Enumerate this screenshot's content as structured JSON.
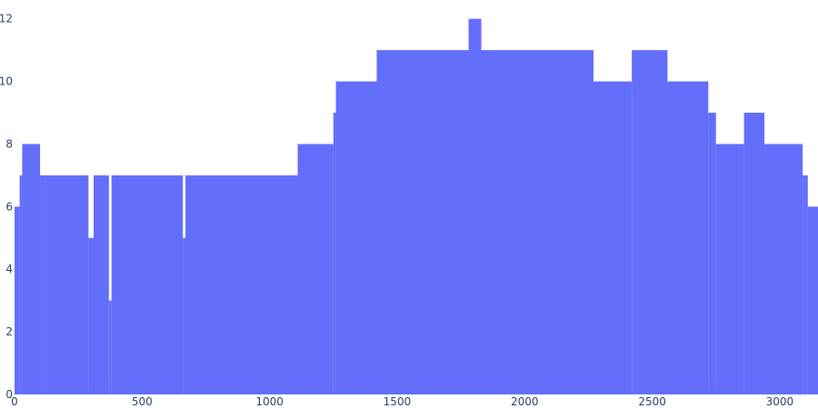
{
  "chart_data": {
    "type": "bar",
    "title": "",
    "xlabel": "",
    "ylabel": "",
    "xlim": [
      0,
      3150
    ],
    "ylim": [
      0,
      12.6
    ],
    "grid": false,
    "legend": "none",
    "bar_color": "#636efa",
    "x_ticks": [
      {
        "value": 0,
        "label": "0"
      },
      {
        "value": 500,
        "label": "500"
      },
      {
        "value": 1000,
        "label": "1000"
      },
      {
        "value": 1500,
        "label": "1500"
      },
      {
        "value": 2000,
        "label": "2000"
      },
      {
        "value": 2500,
        "label": "2500"
      },
      {
        "value": 3000,
        "label": "3000"
      }
    ],
    "y_ticks": [
      {
        "value": 0,
        "label": "0"
      },
      {
        "value": 2,
        "label": "2"
      },
      {
        "value": 4,
        "label": "4"
      },
      {
        "value": 6,
        "label": "6"
      },
      {
        "value": 8,
        "label": "8"
      },
      {
        "value": 10,
        "label": "10"
      },
      {
        "value": 12,
        "label": "12"
      }
    ],
    "series": [
      {
        "values_note": "approximate bar heights per x-segment (read from image)",
        "segments": [
          {
            "x0": 0,
            "x1": 20,
            "y": 6
          },
          {
            "x0": 20,
            "x1": 30,
            "y": 7
          },
          {
            "x0": 30,
            "x1": 100,
            "y": 8
          },
          {
            "x0": 100,
            "x1": 290,
            "y": 7
          },
          {
            "x0": 290,
            "x1": 310,
            "y": 5
          },
          {
            "x0": 310,
            "x1": 370,
            "y": 7
          },
          {
            "x0": 370,
            "x1": 380,
            "y": 3
          },
          {
            "x0": 380,
            "x1": 660,
            "y": 7
          },
          {
            "x0": 660,
            "x1": 670,
            "y": 5
          },
          {
            "x0": 670,
            "x1": 1110,
            "y": 7
          },
          {
            "x0": 1110,
            "x1": 1250,
            "y": 8
          },
          {
            "x0": 1250,
            "x1": 1260,
            "y": 9
          },
          {
            "x0": 1260,
            "x1": 1420,
            "y": 10
          },
          {
            "x0": 1420,
            "x1": 1780,
            "y": 11
          },
          {
            "x0": 1780,
            "x1": 1830,
            "y": 12
          },
          {
            "x0": 1830,
            "x1": 2270,
            "y": 11
          },
          {
            "x0": 2270,
            "x1": 2420,
            "y": 10
          },
          {
            "x0": 2420,
            "x1": 2560,
            "y": 11
          },
          {
            "x0": 2560,
            "x1": 2720,
            "y": 10
          },
          {
            "x0": 2720,
            "x1": 2750,
            "y": 9
          },
          {
            "x0": 2750,
            "x1": 2860,
            "y": 8
          },
          {
            "x0": 2860,
            "x1": 2940,
            "y": 9
          },
          {
            "x0": 2940,
            "x1": 3090,
            "y": 8
          },
          {
            "x0": 3090,
            "x1": 3110,
            "y": 7
          },
          {
            "x0": 3110,
            "x1": 3150,
            "y": 6
          }
        ]
      }
    ]
  }
}
